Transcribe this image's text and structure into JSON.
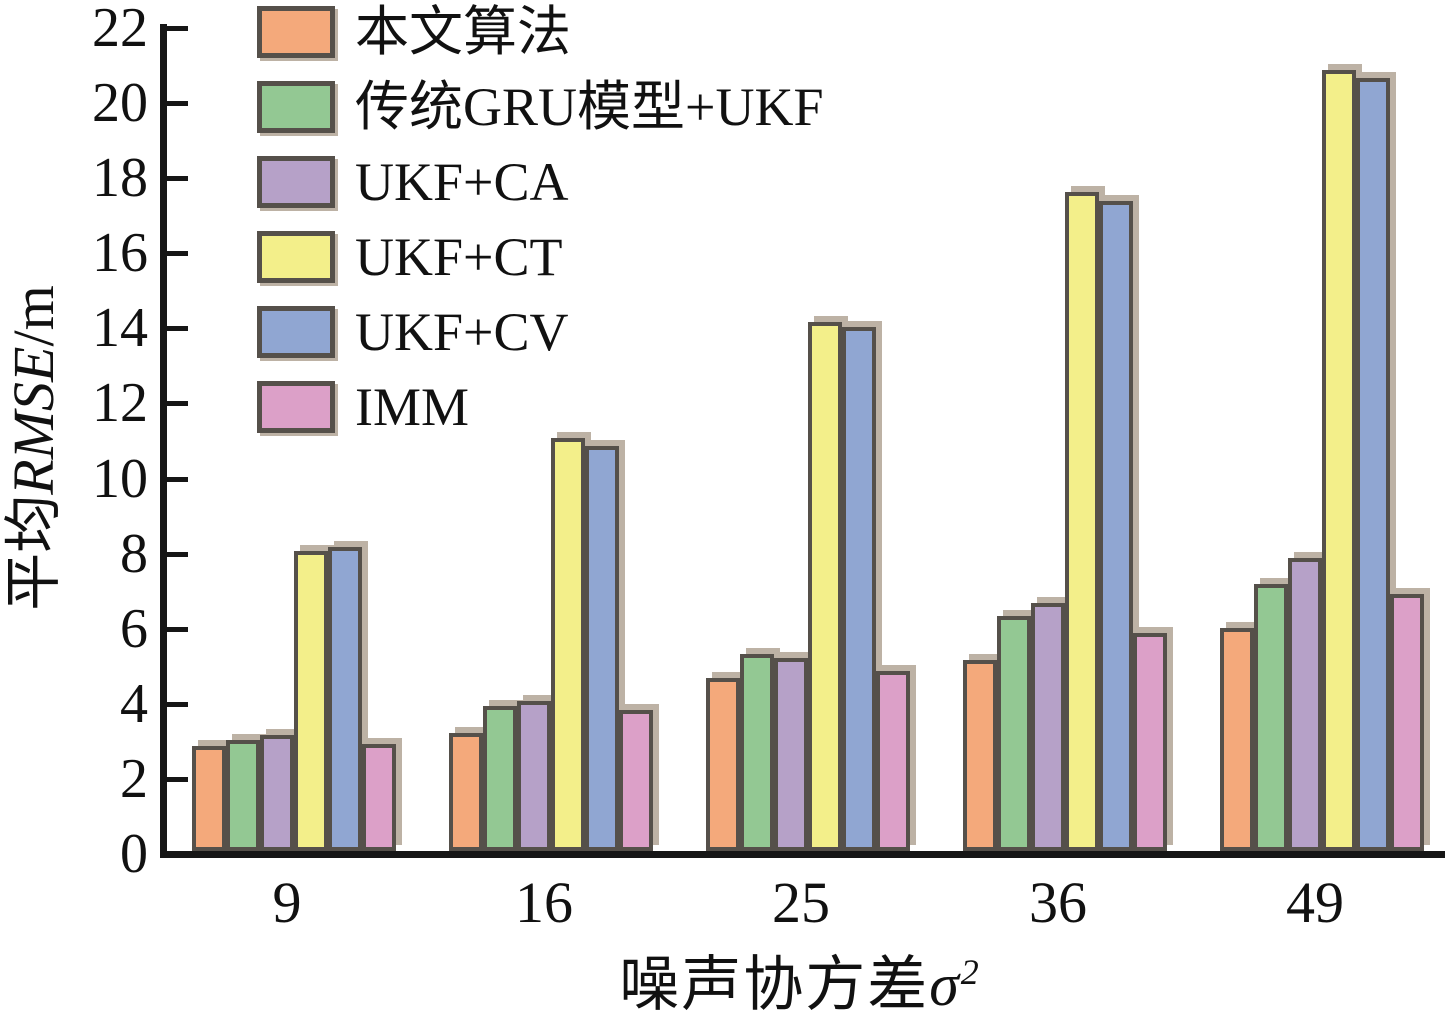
{
  "chart_data": {
    "type": "bar",
    "categories": [
      "9",
      "16",
      "25",
      "36",
      "49"
    ],
    "series": [
      {
        "name": "本文算法",
        "color": "#f4a97b",
        "values": [
          2.8,
          3.15,
          4.6,
          5.1,
          5.95
        ]
      },
      {
        "name": "传统GRU模型+UKF",
        "color": "#93c893",
        "values": [
          2.95,
          3.85,
          5.25,
          6.25,
          7.1
        ]
      },
      {
        "name": "UKF+CA",
        "color": "#b6a1c8",
        "values": [
          3.1,
          4.0,
          5.15,
          6.6,
          7.8
        ]
      },
      {
        "name": "UKF+CT",
        "color": "#f3ef8a",
        "values": [
          8.0,
          11.0,
          14.1,
          17.55,
          20.8
        ]
      },
      {
        "name": "UKF+CV",
        "color": "#90a6d2",
        "values": [
          8.1,
          10.8,
          13.95,
          17.3,
          20.6
        ]
      },
      {
        "name": "IMM",
        "color": "#dca0c8",
        "values": [
          2.85,
          3.75,
          4.8,
          5.8,
          6.85
        ]
      }
    ],
    "title": "",
    "xlabel": "噪声协方差σ²",
    "xlabel_parts": {
      "base": "噪声协方差",
      "sigma": "σ",
      "sup": "2"
    },
    "ylabel": "平均RMSE/m",
    "ylabel_parts": {
      "prefix": "平均",
      "italic": "RMSE",
      "suffix": "/m"
    },
    "ylim": [
      0,
      22
    ],
    "ytick_step": 2,
    "grid": false,
    "legend_position": "top-left",
    "colors": {
      "axis": "#161616",
      "bar_border": "#55504a",
      "bar_shadow": "#bdb2a5"
    }
  }
}
